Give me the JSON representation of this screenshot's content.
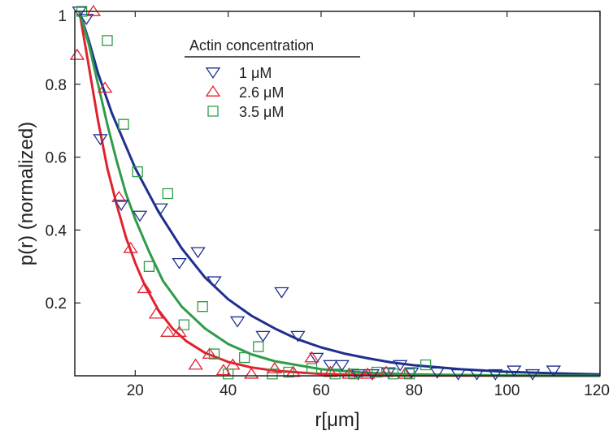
{
  "chart_data": {
    "type": "scatter",
    "title": "",
    "xlabel": "r[μm]",
    "ylabel": "p(r) (normalized)",
    "xlim": [
      7,
      120
    ],
    "ylim": [
      0,
      1
    ],
    "x_ticks": [
      20,
      40,
      60,
      80,
      100,
      120
    ],
    "y_ticks": [
      0.2,
      0.4,
      0.6,
      0.8,
      1
    ],
    "x_tick_labels": [
      "20",
      "40",
      "60",
      "80",
      "100",
      "120"
    ],
    "y_tick_labels": [
      "0.2",
      "0.4",
      "0.6",
      "0.8",
      "1"
    ],
    "grid": false,
    "legend": {
      "title": "Actin concentration",
      "placement": "top-center"
    },
    "series": [
      {
        "name": "1 μM",
        "color": "#1f2f8f",
        "marker": "triangle-down",
        "points": [
          [
            8,
            1.0
          ],
          [
            9.5,
            0.98
          ],
          [
            12.5,
            0.65
          ],
          [
            17,
            0.47
          ],
          [
            21,
            0.44
          ],
          [
            25.5,
            0.46
          ],
          [
            29.5,
            0.31
          ],
          [
            33.5,
            0.34
          ],
          [
            37,
            0.26
          ],
          [
            42,
            0.15
          ],
          [
            47.5,
            0.11
          ],
          [
            51.5,
            0.23
          ],
          [
            55,
            0.11
          ],
          [
            59,
            0.05
          ],
          [
            62,
            0.03
          ],
          [
            64.5,
            0.03
          ],
          [
            68,
            0.005
          ],
          [
            71,
            0.005
          ],
          [
            74.5,
            0.01
          ],
          [
            77,
            0.03
          ],
          [
            79.5,
            0.01
          ],
          [
            85,
            0.01
          ],
          [
            89.5,
            0.005
          ],
          [
            93.5,
            0.005
          ],
          [
            97.5,
            0.005
          ],
          [
            101.5,
            0.015
          ],
          [
            105.5,
            0.005
          ],
          [
            110,
            0.015
          ]
        ],
        "fit": [
          [
            8,
            1.0
          ],
          [
            10,
            0.92
          ],
          [
            12,
            0.83
          ],
          [
            15,
            0.72
          ],
          [
            20,
            0.57
          ],
          [
            25,
            0.45
          ],
          [
            30,
            0.35
          ],
          [
            35,
            0.27
          ],
          [
            40,
            0.21
          ],
          [
            45,
            0.165
          ],
          [
            50,
            0.13
          ],
          [
            55,
            0.1
          ],
          [
            60,
            0.078
          ],
          [
            65,
            0.061
          ],
          [
            70,
            0.048
          ],
          [
            75,
            0.037
          ],
          [
            80,
            0.029
          ],
          [
            90,
            0.018
          ],
          [
            100,
            0.011
          ],
          [
            110,
            0.007
          ],
          [
            120,
            0.004
          ]
        ]
      },
      {
        "name": "2.6 μM",
        "color": "#e0222e",
        "marker": "triangle-up",
        "points": [
          [
            7.5,
            0.88
          ],
          [
            11,
            1.0
          ],
          [
            13.5,
            0.79
          ],
          [
            16.5,
            0.49
          ],
          [
            19,
            0.35
          ],
          [
            22,
            0.24
          ],
          [
            24.5,
            0.17
          ],
          [
            27,
            0.12
          ],
          [
            29.5,
            0.12
          ],
          [
            33,
            0.03
          ],
          [
            36,
            0.06
          ],
          [
            39,
            0.015
          ],
          [
            41,
            0.03
          ],
          [
            45,
            0.005
          ],
          [
            50,
            0.02
          ],
          [
            54,
            0.01
          ],
          [
            58,
            0.05
          ],
          [
            62,
            0.01
          ],
          [
            66,
            0.005
          ],
          [
            70,
            0.005
          ],
          [
            74,
            0.01
          ],
          [
            78,
            0.005
          ]
        ],
        "fit": [
          [
            8,
            1.0
          ],
          [
            10,
            0.85
          ],
          [
            12,
            0.7
          ],
          [
            14,
            0.57
          ],
          [
            16,
            0.47
          ],
          [
            18,
            0.38
          ],
          [
            20,
            0.31
          ],
          [
            22,
            0.25
          ],
          [
            25,
            0.18
          ],
          [
            28,
            0.13
          ],
          [
            31,
            0.095
          ],
          [
            35,
            0.063
          ],
          [
            40,
            0.038
          ],
          [
            45,
            0.023
          ],
          [
            50,
            0.014
          ],
          [
            60,
            0.005
          ],
          [
            70,
            0.002
          ],
          [
            80,
            0.001
          ],
          [
            120,
            0.0
          ]
        ]
      },
      {
        "name": "3.5 μM",
        "color": "#2e9c4a",
        "marker": "square",
        "points": [
          [
            8.5,
            1.0
          ],
          [
            14,
            0.92
          ],
          [
            17.5,
            0.69
          ],
          [
            20.5,
            0.56
          ],
          [
            23,
            0.3
          ],
          [
            27,
            0.5
          ],
          [
            30.5,
            0.14
          ],
          [
            34.5,
            0.19
          ],
          [
            37,
            0.06
          ],
          [
            40,
            0.005
          ],
          [
            43.5,
            0.05
          ],
          [
            46.5,
            0.08
          ],
          [
            49.5,
            0.005
          ],
          [
            53,
            0.01
          ],
          [
            58,
            0.02
          ],
          [
            63,
            0.005
          ],
          [
            67,
            0.005
          ],
          [
            72,
            0.01
          ],
          [
            75.5,
            0.005
          ],
          [
            79,
            0.005
          ],
          [
            82.5,
            0.03
          ]
        ],
        "fit": [
          [
            8,
            1.0
          ],
          [
            10,
            0.91
          ],
          [
            12,
            0.8
          ],
          [
            14,
            0.69
          ],
          [
            16,
            0.59
          ],
          [
            18,
            0.5
          ],
          [
            20,
            0.43
          ],
          [
            23,
            0.34
          ],
          [
            26,
            0.26
          ],
          [
            30,
            0.19
          ],
          [
            35,
            0.13
          ],
          [
            40,
            0.087
          ],
          [
            45,
            0.059
          ],
          [
            50,
            0.04
          ],
          [
            60,
            0.018
          ],
          [
            70,
            0.008
          ],
          [
            80,
            0.004
          ],
          [
            100,
            0.001
          ],
          [
            120,
            0.0
          ]
        ]
      }
    ]
  }
}
